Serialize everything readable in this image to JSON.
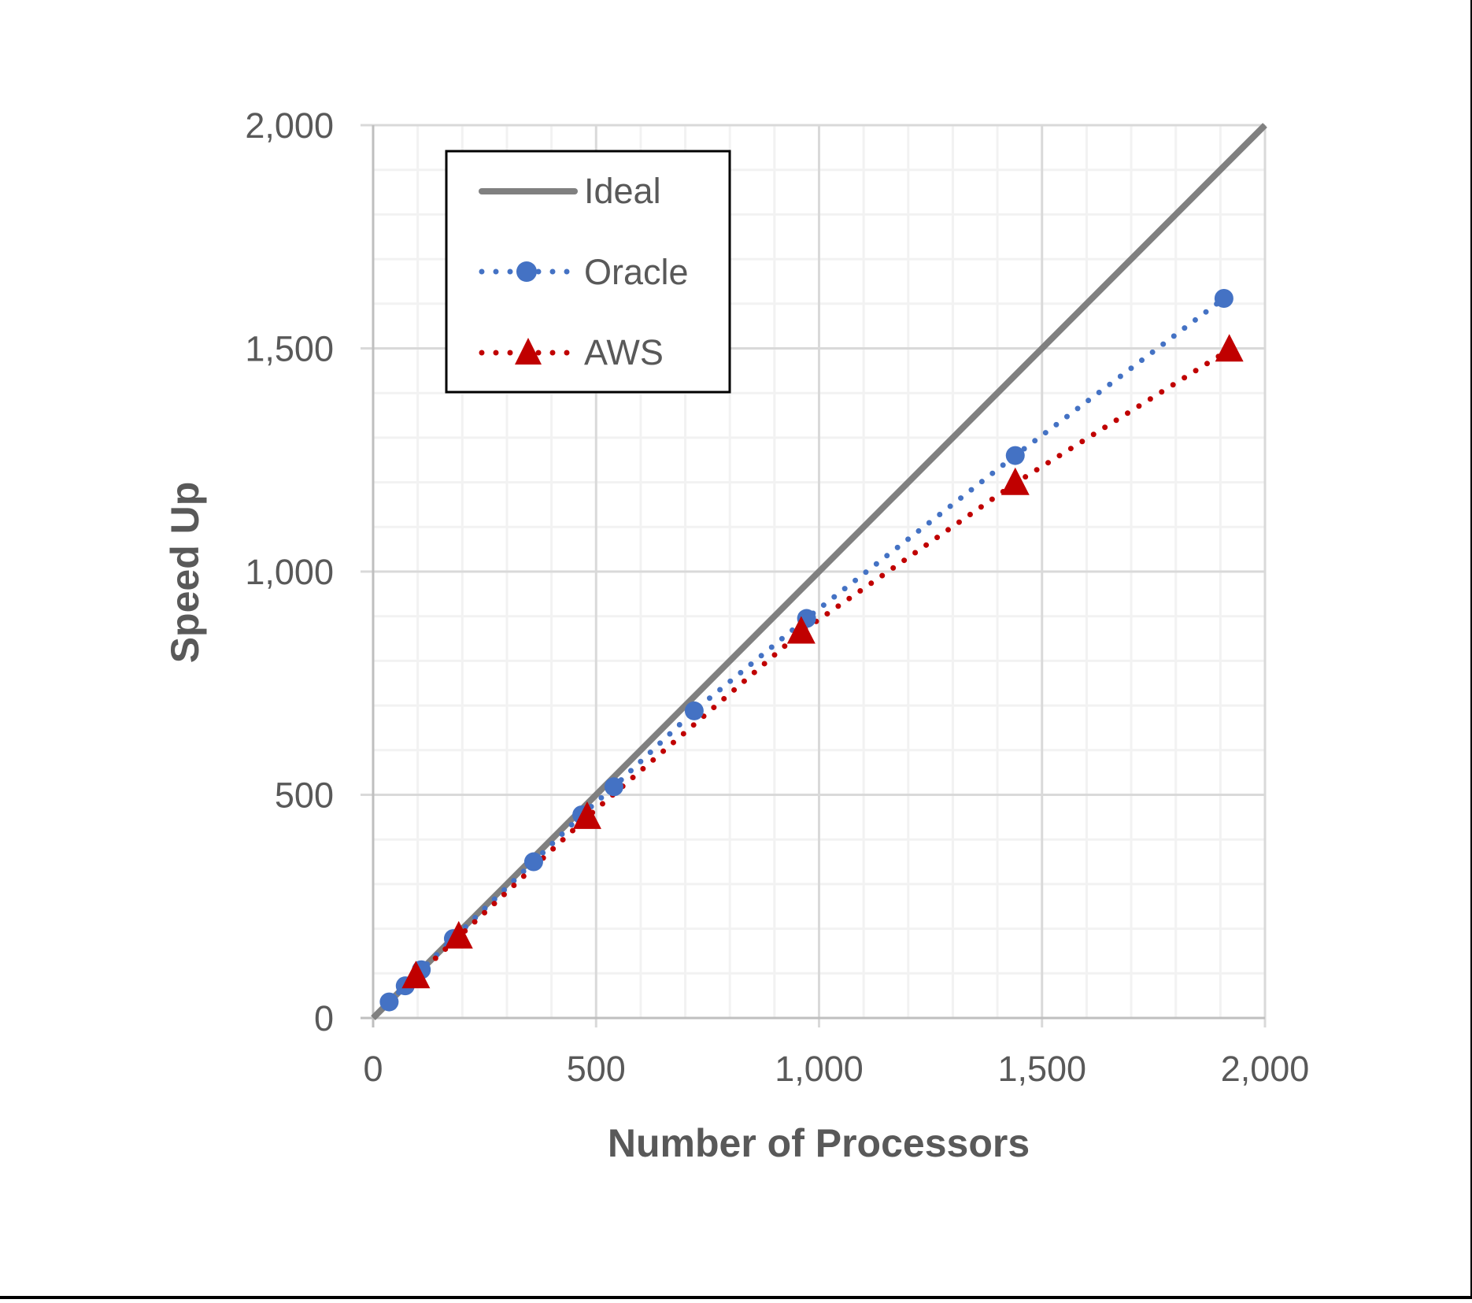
{
  "chart_data": {
    "type": "line",
    "title": "",
    "xlabel": "Number of Processors",
    "ylabel": "Speed Up",
    "xlim": [
      0,
      2000
    ],
    "ylim": [
      0,
      2000
    ],
    "x_ticks": [
      0,
      500,
      1000,
      1500,
      2000
    ],
    "x_tick_labels": [
      "0",
      "500",
      "1,000",
      "1,500",
      "2,000"
    ],
    "y_ticks": [
      0,
      500,
      1000,
      1500,
      2000
    ],
    "y_tick_labels": [
      "0",
      "500",
      "1,000",
      "1,500",
      "2,000"
    ],
    "grid": {
      "major": true,
      "minor": true,
      "minor_step": 100
    },
    "legend_position": "upper-left (inside plot)",
    "series": [
      {
        "name": "Ideal",
        "style": "solid line",
        "color": "#808080",
        "marker": "none",
        "x": [
          0,
          2000
        ],
        "y": [
          0,
          2000
        ]
      },
      {
        "name": "Oracle",
        "style": "dotted line",
        "color": "#4472C4",
        "marker": "circle",
        "x": [
          36,
          72,
          108,
          180,
          360,
          468,
          540,
          720,
          972,
          1440,
          1908
        ],
        "y": [
          36,
          72,
          108,
          178,
          350,
          455,
          518,
          688,
          895,
          1260,
          1612
        ]
      },
      {
        "name": "AWS",
        "style": "dotted line",
        "color": "#C00000",
        "marker": "triangle",
        "x": [
          96,
          192,
          480,
          960,
          1440,
          1920
        ],
        "y": [
          93,
          182,
          450,
          865,
          1198,
          1497
        ]
      }
    ]
  },
  "legend": {
    "items": [
      {
        "label": "Ideal"
      },
      {
        "label": "Oracle"
      },
      {
        "label": "AWS"
      }
    ]
  },
  "colors": {
    "ideal": "#808080",
    "oracle": "#4472C4",
    "aws": "#C00000",
    "axis_text": "#595959",
    "major_grid": "#D9D9D9",
    "minor_grid": "#F2F2F2"
  }
}
